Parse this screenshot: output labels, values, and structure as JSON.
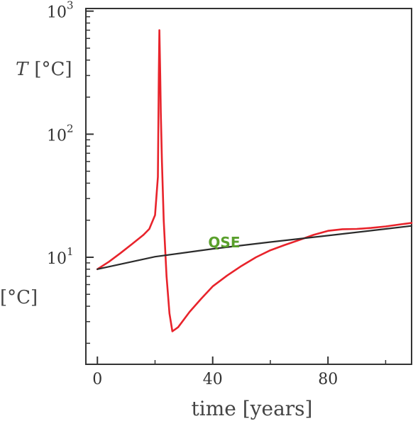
{
  "chart_data": {
    "type": "line",
    "xlabel": "time [years]",
    "ylabel_var": "T",
    "ylabel_unit": "[°C]",
    "left_clip_label": "[°C]",
    "xscale": "linear",
    "yscale": "log",
    "xlim": [
      -4,
      109
    ],
    "ylim": [
      1.35,
      1050
    ],
    "x_ticks": [
      {
        "value": 0,
        "label": "0"
      },
      {
        "value": 40,
        "label": "40"
      },
      {
        "value": 80,
        "label": "80"
      }
    ],
    "y_ticks": [
      {
        "value": 10,
        "base": "10",
        "exp": "1"
      },
      {
        "value": 100,
        "base": "10",
        "exp": "2"
      },
      {
        "value": 1000,
        "base": "10",
        "exp": "3"
      }
    ],
    "grid": false,
    "annotations": [
      {
        "text": "QSE",
        "x": 44,
        "y": 12,
        "color": "#5aa02c"
      }
    ],
    "series": [
      {
        "color": "#e8232b",
        "x": [
          0,
          4,
          8,
          12,
          16,
          18,
          20,
          21,
          21.3,
          21.5,
          21.8,
          22,
          22.4,
          23,
          24,
          25,
          26,
          28,
          32,
          36,
          40,
          45,
          50,
          55,
          60,
          65,
          70,
          75,
          80,
          85,
          90,
          95,
          100,
          105,
          109
        ],
        "y": [
          8,
          9.2,
          10.8,
          12.8,
          15.2,
          17,
          22,
          45,
          300,
          700,
          300,
          150,
          60,
          20,
          7,
          3.5,
          2.5,
          2.7,
          3.6,
          4.6,
          5.8,
          7.1,
          8.5,
          10,
          11.4,
          12.6,
          13.8,
          15.2,
          16.4,
          16.9,
          17,
          17.3,
          17.8,
          18.5,
          19
        ]
      },
      {
        "color": "#2b2b2b",
        "x": [
          0,
          20,
          40,
          60,
          80,
          100,
          109
        ],
        "y": [
          8,
          10.1,
          11.7,
          13.3,
          15,
          17,
          18
        ]
      }
    ]
  }
}
